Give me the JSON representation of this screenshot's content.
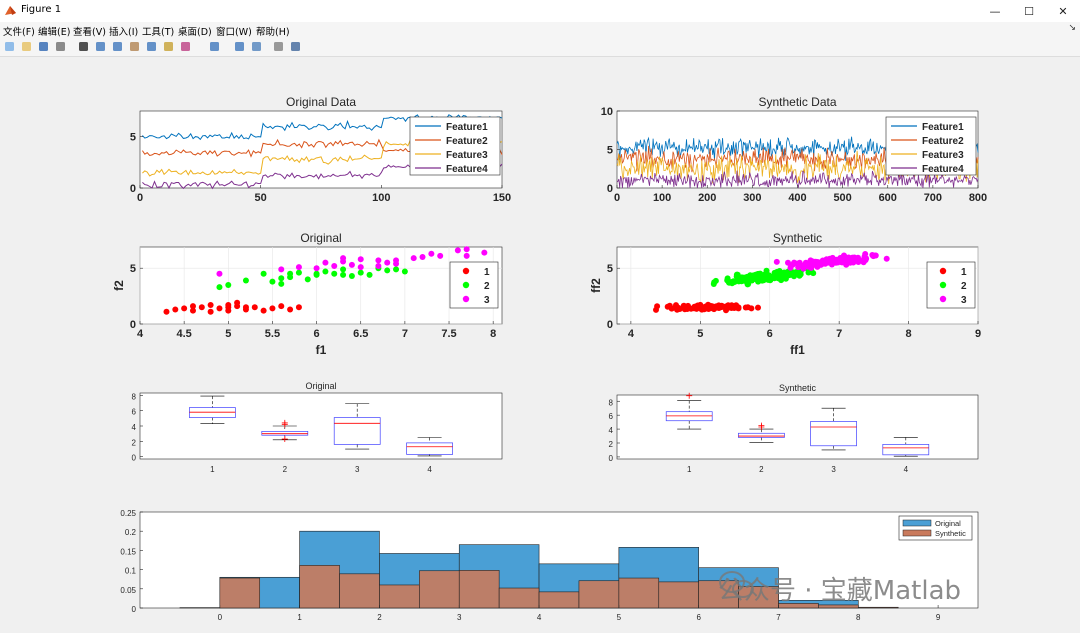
{
  "window": {
    "title": "Figure 1"
  },
  "menu": [
    "文件(F)",
    "编辑(E)",
    "查看(V)",
    "插入(I)",
    "工具(T)",
    "桌面(D)",
    "窗口(W)",
    "帮助(H)"
  ],
  "toolbar_icons": [
    "new-icon",
    "open-icon",
    "save-icon",
    "print-icon",
    "pointer-icon",
    "zoom-in-icon",
    "zoom-out-icon",
    "pan-icon",
    "rotate-icon",
    "data-tip-icon",
    "brush-icon",
    "link-icon",
    "colorbar-icon",
    "legend-icon",
    "hide-tools-icon",
    "dock-icon"
  ],
  "watermark": {
    "text": "公众号 · 宝藏Matlab"
  },
  "colors": {
    "f1": "#0072BD",
    "f2": "#D95319",
    "f3": "#EDB120",
    "f4": "#7E2F8E",
    "c1": "#ff0000",
    "c2": "#00ff00",
    "c3": "#ff00ff",
    "orig": "#4a9fd5",
    "synth": "#c97a5c"
  },
  "chart_data": [
    {
      "id": "original-data",
      "type": "line",
      "title": "Original Data",
      "xlim": [
        0,
        150
      ],
      "ylim": [
        0,
        7.5
      ],
      "xticks": [
        "0",
        "50",
        "100",
        "150"
      ],
      "yticks": [
        "0",
        "5"
      ],
      "legend": [
        "Feature1",
        "Feature2",
        "Feature3",
        "Feature4"
      ],
      "series_levels": [
        {
          "name": "Feature1",
          "segments": [
            [
              0,
              50,
              5.0
            ],
            [
              50,
              100,
              6.0
            ],
            [
              100,
              150,
              6.8
            ]
          ]
        },
        {
          "name": "Feature2",
          "segments": [
            [
              0,
              50,
              3.4
            ],
            [
              50,
              100,
              4.3
            ],
            [
              100,
              150,
              3.6
            ]
          ]
        },
        {
          "name": "Feature3",
          "segments": [
            [
              0,
              50,
              1.5
            ],
            [
              50,
              100,
              2.8
            ],
            [
              100,
              150,
              4.3
            ]
          ]
        },
        {
          "name": "Feature4",
          "segments": [
            [
              0,
              50,
              0.3
            ],
            [
              50,
              100,
              1.2
            ],
            [
              100,
              150,
              2.0
            ]
          ]
        }
      ]
    },
    {
      "id": "synthetic-data",
      "type": "line",
      "title": "Synthetic Data",
      "xlim": [
        0,
        800
      ],
      "ylim": [
        0,
        10
      ],
      "xticks": [
        "0",
        "100",
        "200",
        "300",
        "400",
        "500",
        "600",
        "700",
        "800"
      ],
      "yticks": [
        "0",
        "5",
        "10"
      ],
      "legend": [
        "Feature1",
        "Feature2",
        "Feature3",
        "Feature4"
      ]
    },
    {
      "id": "original-scatter",
      "type": "scatter",
      "title": "Original",
      "xlabel": "f1",
      "ylabel": "f2",
      "xlim": [
        4,
        8.1
      ],
      "ylim": [
        0,
        6.9
      ],
      "xticks": [
        "4",
        "4.5",
        "5",
        "5.5",
        "6",
        "6.5",
        "7",
        "7.5",
        "8"
      ],
      "yticks": [
        "0",
        "5"
      ],
      "legend": [
        "1",
        "2",
        "3"
      ],
      "series": [
        {
          "name": "1",
          "points": [
            [
              4.3,
              1.1
            ],
            [
              4.4,
              1.3
            ],
            [
              4.5,
              1.4
            ],
            [
              4.6,
              1.2
            ],
            [
              4.7,
              1.5
            ],
            [
              4.8,
              1.7
            ],
            [
              4.9,
              1.4
            ],
            [
              5.0,
              1.5
            ],
            [
              5.0,
              1.2
            ],
            [
              5.1,
              1.6
            ],
            [
              5.1,
              1.9
            ],
            [
              5.2,
              1.3
            ],
            [
              5.3,
              1.5
            ],
            [
              5.4,
              1.2
            ],
            [
              5.5,
              1.4
            ],
            [
              5.6,
              1.6
            ],
            [
              5.7,
              1.3
            ],
            [
              5.8,
              1.5
            ],
            [
              4.8,
              1.1
            ],
            [
              5.0,
              1.7
            ],
            [
              4.6,
              1.6
            ],
            [
              5.2,
              1.5
            ]
          ]
        },
        {
          "name": "2",
          "points": [
            [
              4.9,
              3.3
            ],
            [
              5.0,
              3.5
            ],
            [
              5.2,
              3.9
            ],
            [
              5.4,
              4.5
            ],
            [
              5.5,
              3.8
            ],
            [
              5.6,
              4.1
            ],
            [
              5.7,
              4.2
            ],
            [
              5.8,
              4.6
            ],
            [
              5.9,
              4.0
            ],
            [
              6.0,
              4.4
            ],
            [
              6.1,
              4.7
            ],
            [
              6.2,
              4.5
            ],
            [
              6.3,
              4.9
            ],
            [
              6.4,
              4.3
            ],
            [
              6.5,
              4.6
            ],
            [
              6.6,
              4.4
            ],
            [
              6.7,
              5.0
            ],
            [
              6.8,
              4.8
            ],
            [
              6.9,
              4.9
            ],
            [
              7.0,
              4.7
            ],
            [
              5.6,
              3.6
            ],
            [
              6.0,
              4.5
            ],
            [
              5.7,
              4.5
            ],
            [
              6.3,
              4.4
            ]
          ]
        },
        {
          "name": "3",
          "points": [
            [
              4.9,
              4.5
            ],
            [
              5.6,
              4.9
            ],
            [
              5.8,
              5.1
            ],
            [
              6.0,
              5.0
            ],
            [
              6.1,
              5.5
            ],
            [
              6.2,
              5.2
            ],
            [
              6.3,
              5.6
            ],
            [
              6.4,
              5.3
            ],
            [
              6.5,
              5.8
            ],
            [
              6.7,
              5.7
            ],
            [
              6.8,
              5.5
            ],
            [
              6.9,
              5.4
            ],
            [
              7.1,
              5.9
            ],
            [
              7.2,
              6.0
            ],
            [
              7.3,
              6.3
            ],
            [
              7.4,
              6.1
            ],
            [
              7.6,
              6.6
            ],
            [
              7.7,
              6.7
            ],
            [
              7.9,
              6.4
            ],
            [
              6.5,
              5.1
            ],
            [
              6.3,
              5.9
            ],
            [
              7.7,
              6.1
            ],
            [
              6.9,
              5.7
            ],
            [
              6.7,
              5.2
            ]
          ]
        }
      ]
    },
    {
      "id": "synthetic-scatter",
      "type": "scatter",
      "title": "Synthetic",
      "xlabel": "ff1",
      "ylabel": "ff2",
      "xlim": [
        3.8,
        9
      ],
      "ylim": [
        0,
        6.9
      ],
      "xticks": [
        "4",
        "5",
        "6",
        "7",
        "8",
        "9"
      ],
      "yticks": [
        "0",
        "5"
      ],
      "legend": [
        "1",
        "2",
        "3"
      ]
    },
    {
      "id": "original-box",
      "type": "box",
      "title": "Original",
      "xticks": [
        "1",
        "2",
        "3",
        "4"
      ],
      "yticks": [
        "0",
        "2",
        "4",
        "6",
        "8"
      ],
      "ylim": [
        -0.3,
        8.3
      ],
      "boxes": [
        {
          "min": 4.3,
          "q1": 5.1,
          "med": 5.8,
          "q3": 6.4,
          "max": 7.9
        },
        {
          "min": 2.2,
          "q1": 2.8,
          "med": 3.0,
          "q3": 3.3,
          "max": 4.0,
          "outliers": [
            4.4,
            4.2,
            2.3
          ]
        },
        {
          "min": 1.0,
          "q1": 1.6,
          "med": 4.35,
          "q3": 5.1,
          "max": 6.9
        },
        {
          "min": 0.1,
          "q1": 0.3,
          "med": 1.3,
          "q3": 1.8,
          "max": 2.5
        }
      ]
    },
    {
      "id": "synthetic-box",
      "type": "box",
      "title": "Synthetic",
      "xticks": [
        "1",
        "2",
        "3",
        "4"
      ],
      "yticks": [
        "0",
        "2",
        "4",
        "6",
        "8"
      ],
      "ylim": [
        -0.3,
        8.9
      ],
      "boxes": [
        {
          "min": 4.0,
          "q1": 5.2,
          "med": 5.9,
          "q3": 6.5,
          "max": 8.1,
          "outliers": [
            8.8
          ]
        },
        {
          "min": 2.1,
          "q1": 2.8,
          "med": 3.0,
          "q3": 3.4,
          "max": 4.0,
          "outliers": [
            4.3,
            4.5
          ]
        },
        {
          "min": 1.0,
          "q1": 1.6,
          "med": 4.3,
          "q3": 5.1,
          "max": 7.0
        },
        {
          "min": 0.1,
          "q1": 0.3,
          "med": 1.3,
          "q3": 1.8,
          "max": 2.8
        }
      ]
    },
    {
      "id": "histogram",
      "type": "bar",
      "xlim": [
        -1,
        9.5
      ],
      "ylim": [
        0,
        0.25
      ],
      "xticks": [
        "0",
        "1",
        "2",
        "3",
        "4",
        "5",
        "6",
        "7",
        "8",
        "9"
      ],
      "yticks": [
        "0",
        "0.05",
        "0.1",
        "0.15",
        "0.2",
        "0.25"
      ],
      "legend": [
        "Original",
        "Synthetic"
      ],
      "series": [
        {
          "name": "Original",
          "bins": [
            [
              0,
              1,
              0.08
            ],
            [
              1,
              2,
              0.2
            ],
            [
              2,
              3,
              0.142
            ],
            [
              3,
              4,
              0.165
            ],
            [
              4,
              5,
              0.115
            ],
            [
              5,
              6,
              0.158
            ],
            [
              6,
              7,
              0.105
            ],
            [
              7,
              8,
              0.02
            ]
          ]
        },
        {
          "name": "Synthetic",
          "bins": [
            [
              0,
              0.5,
              0.078
            ],
            [
              1,
              1.5,
              0.111
            ],
            [
              1.5,
              2,
              0.089
            ],
            [
              2,
              2.5,
              0.06
            ],
            [
              2.5,
              3,
              0.097
            ],
            [
              3,
              3.5,
              0.098
            ],
            [
              3.5,
              4,
              0.052
            ],
            [
              4,
              4.5,
              0.042
            ],
            [
              4.5,
              5,
              0.071
            ],
            [
              5,
              5.5,
              0.078
            ],
            [
              5.5,
              6,
              0.068
            ],
            [
              6,
              6.5,
              0.071
            ],
            [
              6.5,
              7,
              0.056
            ],
            [
              7,
              7.5,
              0.012
            ],
            [
              7.5,
              8,
              0.008
            ],
            [
              8,
              8.5,
              0.002
            ],
            [
              -0.5,
              0,
              0.001
            ]
          ]
        }
      ]
    }
  ]
}
